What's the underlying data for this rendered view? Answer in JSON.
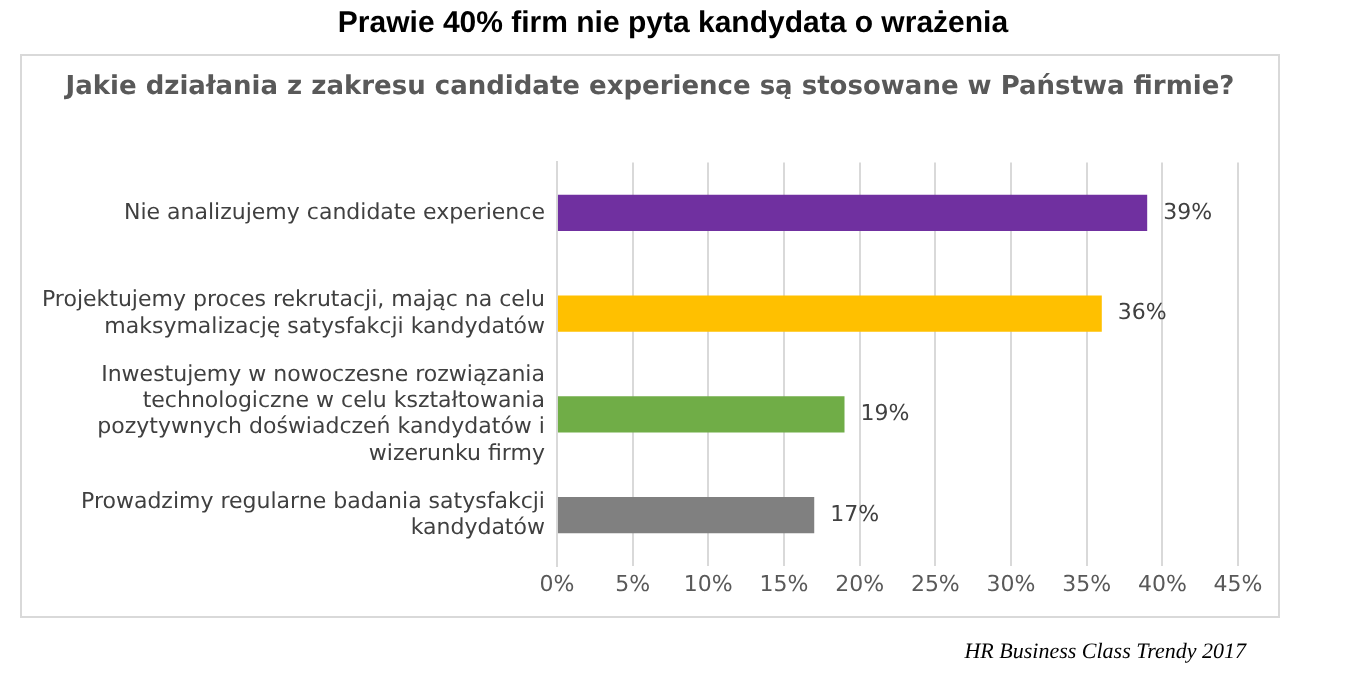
{
  "chart_data": {
    "type": "bar",
    "orientation": "horizontal",
    "title": "Prawie 40% firm nie pyta kandydata o wrażenia",
    "subtitle": "Jakie działania z zakresu candidate experience są stosowane w Państwa firmie?",
    "categories": [
      "Nie analizujemy candidate experience",
      "Projektujemy proces rekrutacji, mając na celu maksymalizację satysfakcji kandydatów",
      "Inwestujemy w nowoczesne rozwiązania technologiczne w celu kształtowania pozytywnych doświadczeń kandydatów i wizerunku firmy",
      "Prowadzimy regularne badania satysfakcji kandydatów"
    ],
    "values": [
      39,
      36,
      19,
      17
    ],
    "colors": [
      "#7030a0",
      "#ffc000",
      "#70ad47",
      "#808080"
    ],
    "value_labels": [
      "39%",
      "36%",
      "19%",
      "17%"
    ],
    "xlim": [
      0,
      45
    ],
    "xticks": [
      {
        "value": 0,
        "label": "0%"
      },
      {
        "value": 5,
        "label": "5%"
      },
      {
        "value": 10,
        "label": "10%"
      },
      {
        "value": 15,
        "label": "15%"
      },
      {
        "value": 20,
        "label": "20%"
      },
      {
        "value": 25,
        "label": "25%"
      },
      {
        "value": 30,
        "label": "30%"
      },
      {
        "value": 35,
        "label": "35%"
      },
      {
        "value": 40,
        "label": "40%"
      },
      {
        "value": 45,
        "label": "45%"
      }
    ],
    "grid": "x",
    "legend": false,
    "annotations": [
      "HR Business Class Trendy 2017"
    ]
  }
}
